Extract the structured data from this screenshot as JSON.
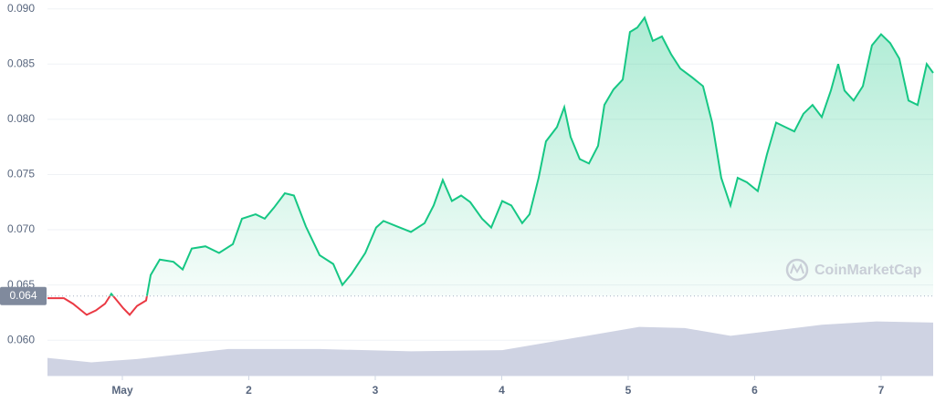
{
  "chart_data": {
    "type": "line",
    "x": [
      0.408,
      0.538,
      0.61,
      0.718,
      0.791,
      0.863,
      0.913,
      0.957,
      1.007,
      1.058,
      1.116,
      1.188,
      1.224,
      1.296,
      1.404,
      1.477,
      1.549,
      1.657,
      1.765,
      1.874,
      1.946,
      2.054,
      2.126,
      2.199,
      2.285,
      2.357,
      2.451,
      2.56,
      2.668,
      2.74,
      2.812,
      2.921,
      3.007,
      3.065,
      3.173,
      3.282,
      3.39,
      3.462,
      3.534,
      3.606,
      3.679,
      3.751,
      3.845,
      3.917,
      4.004,
      4.076,
      4.162,
      4.22,
      4.292,
      4.35,
      4.437,
      4.495,
      4.545,
      4.617,
      4.69,
      4.762,
      4.812,
      4.884,
      4.957,
      5.014,
      5.072,
      5.13,
      5.195,
      5.267,
      5.339,
      5.412,
      5.505,
      5.592,
      5.664,
      5.736,
      5.809,
      5.866,
      5.939,
      6.025,
      6.097,
      6.17,
      6.242,
      6.314,
      6.386,
      6.458,
      6.531,
      6.603,
      6.661,
      6.711,
      6.783,
      6.856,
      6.928,
      7.0,
      7.072,
      7.144,
      7.217,
      7.289,
      7.361,
      7.412
    ],
    "series": [
      {
        "color": "#16c784",
        "down_color": "#ea3943",
        "values": [
          0.0638,
          0.0638,
          0.0633,
          0.0623,
          0.0627,
          0.0633,
          0.0642,
          0.0636,
          0.0629,
          0.0623,
          0.0631,
          0.0636,
          0.0659,
          0.0673,
          0.0671,
          0.0664,
          0.0683,
          0.0685,
          0.0679,
          0.0687,
          0.071,
          0.0714,
          0.071,
          0.072,
          0.0733,
          0.0731,
          0.0703,
          0.0677,
          0.0669,
          0.065,
          0.066,
          0.0679,
          0.0702,
          0.0708,
          0.0703,
          0.0698,
          0.0706,
          0.0722,
          0.0745,
          0.0726,
          0.0731,
          0.0725,
          0.071,
          0.0702,
          0.0726,
          0.0722,
          0.0706,
          0.0714,
          0.0747,
          0.078,
          0.0793,
          0.0811,
          0.0784,
          0.0764,
          0.076,
          0.0776,
          0.0813,
          0.0827,
          0.0836,
          0.0879,
          0.0883,
          0.0892,
          0.0871,
          0.0875,
          0.0859,
          0.0846,
          0.0838,
          0.083,
          0.0797,
          0.0747,
          0.0722,
          0.0747,
          0.0743,
          0.0735,
          0.0768,
          0.0797,
          0.0793,
          0.0789,
          0.0805,
          0.0813,
          0.0802,
          0.0826,
          0.085,
          0.0826,
          0.0817,
          0.083,
          0.0867,
          0.0877,
          0.0869,
          0.0855,
          0.0817,
          0.0813,
          0.085,
          0.0842
        ]
      }
    ],
    "volume": {
      "color": "#cfd3e3",
      "x": [
        0.408,
        0.755,
        1.116,
        1.838,
        2.56,
        3.282,
        4.004,
        4.365,
        5.087,
        5.448,
        5.809,
        6.17,
        6.531,
        6.964,
        7.412
      ],
      "values": [
        0.0584,
        0.058,
        0.0583,
        0.0592,
        0.0592,
        0.059,
        0.0591,
        0.0598,
        0.0612,
        0.0611,
        0.0604,
        0.0609,
        0.0614,
        0.0617,
        0.0616
      ]
    },
    "reference": 0.064,
    "xlim": [
      0.408,
      7.412
    ],
    "xticks": [
      {
        "value": 1,
        "label": "May"
      },
      2,
      3,
      4,
      5,
      6,
      7
    ],
    "ylim": [
      0.0568,
      0.0908
    ],
    "yticks": [
      {
        "value": 0.06,
        "label": "0.060"
      },
      0.065,
      {
        "value": 0.07,
        "label": "0.070"
      },
      0.075,
      {
        "value": 0.08,
        "label": "0.080"
      },
      0.085,
      {
        "value": 0.09,
        "label": "0.090"
      }
    ],
    "grid": true,
    "watermark": "CoinMarketCap"
  }
}
